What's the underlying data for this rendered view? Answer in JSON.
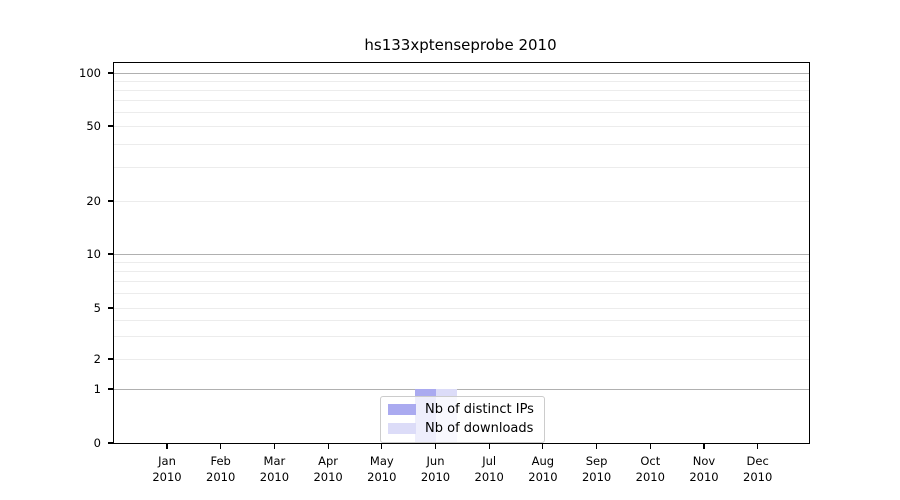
{
  "chart_data": {
    "type": "bar",
    "title": "hs133xptenseprobe 2010",
    "categories": [
      "Jan 2010",
      "Feb 2010",
      "Mar 2010",
      "Apr 2010",
      "May 2010",
      "Jun 2010",
      "Jul 2010",
      "Aug 2010",
      "Sep 2010",
      "Oct 2010",
      "Nov 2010",
      "Dec 2010"
    ],
    "x_tick_lines": [
      [
        "Jan",
        "2010"
      ],
      [
        "Feb",
        "2010"
      ],
      [
        "Mar",
        "2010"
      ],
      [
        "Apr",
        "2010"
      ],
      [
        "May",
        "2010"
      ],
      [
        "Jun",
        "2010"
      ],
      [
        "Jul",
        "2010"
      ],
      [
        "Aug",
        "2010"
      ],
      [
        "Sep",
        "2010"
      ],
      [
        "Oct",
        "2010"
      ],
      [
        "Nov",
        "2010"
      ],
      [
        "Dec",
        "2010"
      ]
    ],
    "series": [
      {
        "name": "Nb of distinct IPs",
        "color": "#aaaaf0",
        "values": [
          0,
          0,
          0,
          0,
          0,
          1,
          0,
          0,
          0,
          0,
          0,
          0
        ]
      },
      {
        "name": "Nb of downloads",
        "color": "#dcdcf8",
        "values": [
          0,
          0,
          0,
          0,
          0,
          1,
          0,
          0,
          0,
          0,
          0,
          0
        ]
      }
    ],
    "yticks": [
      0,
      1,
      2,
      5,
      10,
      20,
      50,
      100
    ],
    "ytick_labels": [
      "0",
      "1",
      "2",
      "5",
      "10",
      "20",
      "50",
      "100"
    ],
    "ylim": [
      0,
      110
    ],
    "xlabel": "",
    "ylabel": "",
    "scale": "quasi-log (linear 0-1, log above)",
    "grid": true,
    "major_grid_values": [
      1,
      10,
      100
    ],
    "minor_grid_values": [
      2,
      3,
      4,
      5,
      6,
      7,
      8,
      9,
      20,
      30,
      40,
      50,
      60,
      70,
      80,
      90
    ],
    "legend_position": "bottom-center",
    "colors": {
      "major_grid": "#b0b0b0",
      "minor_grid": "#ececec",
      "spine": "#000000",
      "text": "#000000"
    }
  }
}
